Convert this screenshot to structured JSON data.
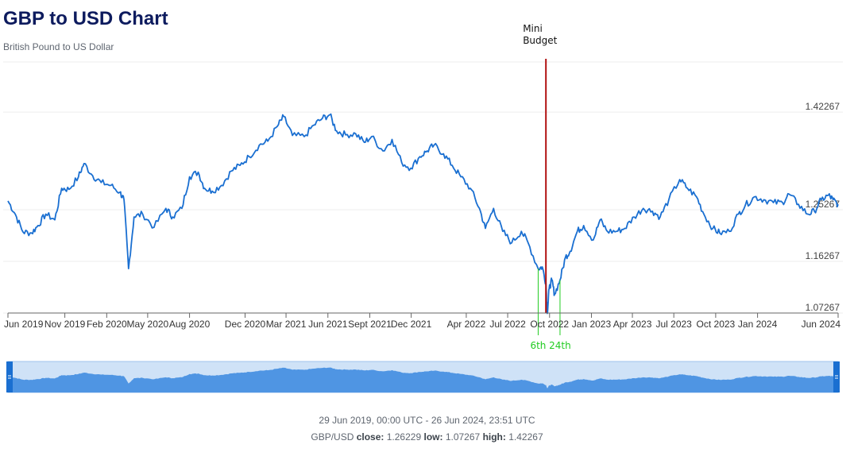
{
  "header": {
    "title": "GBP to USD Chart",
    "subtitle": "British Pound to US Dollar"
  },
  "footer": {
    "range": "29 Jun 2019, 00:00 UTC - 26 Jun 2024, 23:51 UTC",
    "pair": "GBP/USD",
    "close_label": "close:",
    "close_value": "1.26229",
    "low_label": "low:",
    "low_value": "1.07267",
    "high_label": "high:",
    "high_value": "1.42267"
  },
  "colors": {
    "line": "#1a6fd1",
    "navigator_fill": "#4f95e3",
    "navigator_bg": "#cfe2f7",
    "navigator_handle": "#1a6fd1",
    "event_line": "#b11212",
    "event_marker": "#22cc22",
    "grid": "#eeeeee",
    "axis": "#666666"
  },
  "chart_data": {
    "type": "line",
    "title": "GBP to USD Chart",
    "subtitle": "British Pound to US Dollar",
    "series": [
      {
        "name": "GBP/USD",
        "x": [
          "2019-06-29",
          "2019-07-15",
          "2019-08-01",
          "2019-08-20",
          "2019-09-03",
          "2019-09-20",
          "2019-10-10",
          "2019-10-25",
          "2019-11-10",
          "2019-12-01",
          "2019-12-13",
          "2020-01-01",
          "2020-01-20",
          "2020-02-10",
          "2020-03-01",
          "2020-03-10",
          "2020-03-20",
          "2020-04-01",
          "2020-04-20",
          "2020-05-15",
          "2020-06-10",
          "2020-06-25",
          "2020-07-15",
          "2020-08-01",
          "2020-08-20",
          "2020-09-03",
          "2020-09-20",
          "2020-10-10",
          "2020-11-01",
          "2020-11-20",
          "2020-12-10",
          "2021-01-01",
          "2021-01-20",
          "2021-02-10",
          "2021-02-24",
          "2021-03-15",
          "2021-04-10",
          "2021-05-01",
          "2021-05-20",
          "2021-06-05",
          "2021-06-20",
          "2021-07-10",
          "2021-08-01",
          "2021-08-20",
          "2021-09-05",
          "2021-09-30",
          "2021-10-20",
          "2021-11-10",
          "2021-11-30",
          "2021-12-20",
          "2022-01-05",
          "2022-01-20",
          "2022-02-10",
          "2022-03-01",
          "2022-03-20",
          "2022-04-10",
          "2022-04-30",
          "2022-05-13",
          "2022-05-31",
          "2022-06-20",
          "2022-07-10",
          "2022-07-31",
          "2022-08-15",
          "2022-09-06",
          "2022-09-15",
          "2022-09-23",
          "2022-09-26",
          "2022-09-30",
          "2022-10-06",
          "2022-10-12",
          "2022-10-24",
          "2022-11-05",
          "2022-11-15",
          "2022-12-01",
          "2022-12-15",
          "2023-01-05",
          "2023-01-20",
          "2023-02-05",
          "2023-02-25",
          "2023-03-15",
          "2023-04-05",
          "2023-04-25",
          "2023-05-15",
          "2023-06-01",
          "2023-06-20",
          "2023-07-14",
          "2023-07-31",
          "2023-08-20",
          "2023-09-05",
          "2023-09-25",
          "2023-10-10",
          "2023-10-31",
          "2023-11-20",
          "2023-12-05",
          "2023-12-25",
          "2024-01-15",
          "2024-02-05",
          "2024-02-25",
          "2024-03-10",
          "2024-03-31",
          "2024-04-20",
          "2024-05-05",
          "2024-05-20",
          "2024-06-05",
          "2024-06-15",
          "2024-06-26"
        ],
        "y": [
          1.268,
          1.245,
          1.214,
          1.212,
          1.225,
          1.245,
          1.235,
          1.29,
          1.288,
          1.31,
          1.333,
          1.312,
          1.3,
          1.295,
          1.283,
          1.27,
          1.15,
          1.24,
          1.245,
          1.222,
          1.255,
          1.24,
          1.255,
          1.31,
          1.318,
          1.29,
          1.285,
          1.295,
          1.32,
          1.33,
          1.345,
          1.365,
          1.372,
          1.398,
          1.415,
          1.382,
          1.38,
          1.4,
          1.412,
          1.418,
          1.39,
          1.383,
          1.385,
          1.37,
          1.38,
          1.355,
          1.375,
          1.335,
          1.325,
          1.345,
          1.355,
          1.365,
          1.35,
          1.33,
          1.31,
          1.29,
          1.255,
          1.22,
          1.255,
          1.215,
          1.195,
          1.215,
          1.195,
          1.15,
          1.153,
          1.125,
          1.072,
          1.115,
          1.13,
          1.105,
          1.13,
          1.17,
          1.18,
          1.215,
          1.225,
          1.2,
          1.235,
          1.215,
          1.215,
          1.22,
          1.24,
          1.255,
          1.25,
          1.24,
          1.27,
          1.305,
          1.29,
          1.275,
          1.245,
          1.22,
          1.212,
          1.215,
          1.245,
          1.26,
          1.275,
          1.27,
          1.265,
          1.265,
          1.28,
          1.262,
          1.245,
          1.25,
          1.27,
          1.278,
          1.27,
          1.262
        ]
      }
    ],
    "x_ticks": [
      {
        "label": "Jun 2019",
        "date": "2019-06-29"
      },
      {
        "label": "Nov 2019",
        "date": "2019-11-01"
      },
      {
        "label": "Feb 2020",
        "date": "2020-02-01"
      },
      {
        "label": "May 2020",
        "date": "2020-05-01"
      },
      {
        "label": "Aug 2020",
        "date": "2020-08-01"
      },
      {
        "label": "Dec 2020",
        "date": "2020-12-01"
      },
      {
        "label": "Mar 2021",
        "date": "2021-03-01"
      },
      {
        "label": "Jun 2021",
        "date": "2021-06-01"
      },
      {
        "label": "Sept 2021",
        "date": "2021-09-01"
      },
      {
        "label": "Dec 2021",
        "date": "2021-12-01"
      },
      {
        "label": "Apr 2022",
        "date": "2022-04-01"
      },
      {
        "label": "Jul 2022",
        "date": "2022-07-01"
      },
      {
        "label": "Oct 2022",
        "date": "2022-10-01"
      },
      {
        "label": "Jan 2023",
        "date": "2023-01-01"
      },
      {
        "label": "Apr 2023",
        "date": "2023-04-01"
      },
      {
        "label": "Jul 2023",
        "date": "2023-07-01"
      },
      {
        "label": "Oct 2023",
        "date": "2023-10-01"
      },
      {
        "label": "Jan 2024",
        "date": "2024-01-01"
      },
      {
        "label": "Jun 2024",
        "date": "2024-06-26"
      }
    ],
    "y_ticks": [
      1.07267,
      1.16267,
      1.25267,
      1.42267
    ],
    "y_tick_labels": [
      "1.07267",
      "1.16267",
      "1.25267",
      "1.42267"
    ],
    "xlim": [
      "2019-06-29",
      "2024-06-26"
    ],
    "ylim": [
      1.07267,
      1.51
    ],
    "grid": "horizontal",
    "legend": "none",
    "annotations": [
      {
        "type": "vertical-line",
        "date": "2022-09-23",
        "label_lines": [
          "Mini",
          "Budget"
        ],
        "color": "#b11212"
      },
      {
        "type": "marker",
        "date": "2022-09-06",
        "label": "6th",
        "color": "#22cc22"
      },
      {
        "type": "marker",
        "date": "2022-10-24",
        "label": "24th",
        "color": "#22cc22"
      }
    ],
    "navigator": true
  }
}
